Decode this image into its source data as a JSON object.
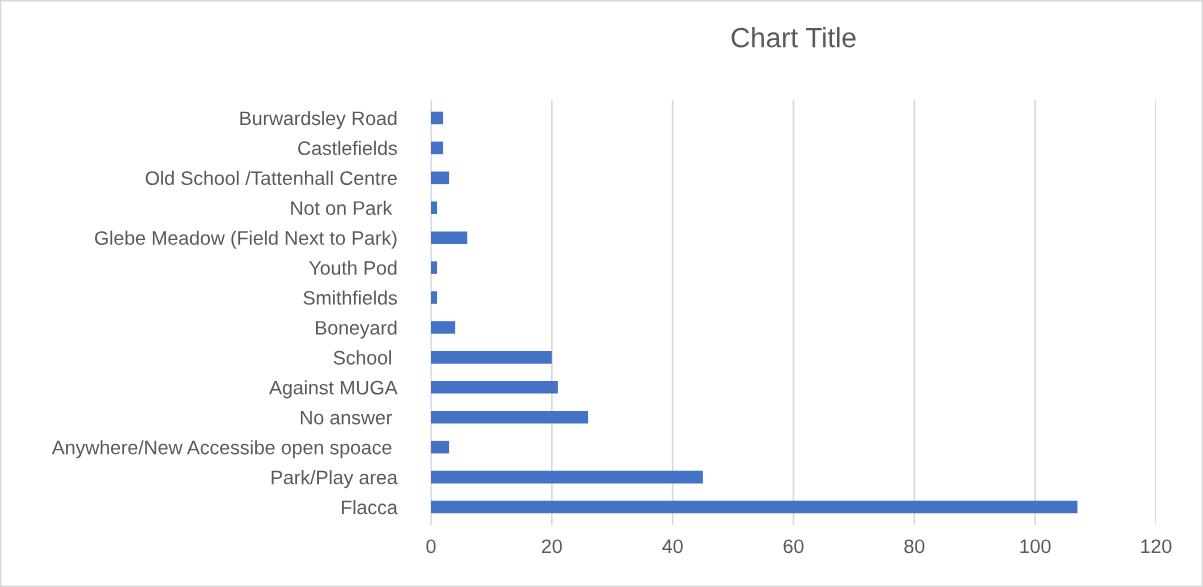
{
  "chart_data": {
    "type": "bar",
    "orientation": "horizontal",
    "title": "Chart Title",
    "categories": [
      "Burwardsley Road",
      "Castlefields",
      "Old School /Tattenhall Centre",
      "Not on Park ",
      "Glebe Meadow (Field Next to Park)",
      "Youth Pod",
      "Smithfields",
      "Boneyard",
      "School ",
      "Against MUGA",
      "No answer ",
      "Anywhere/New Accessibe open spoace ",
      "Park/Play area",
      "Flacca"
    ],
    "values": [
      2,
      2,
      3,
      1,
      6,
      1,
      1,
      4,
      20,
      21,
      26,
      3,
      45,
      107
    ],
    "color": "#4472c4",
    "xlim": [
      0,
      120
    ],
    "xticks": [
      0,
      20,
      40,
      60,
      80,
      100,
      120
    ],
    "grid": "x"
  }
}
